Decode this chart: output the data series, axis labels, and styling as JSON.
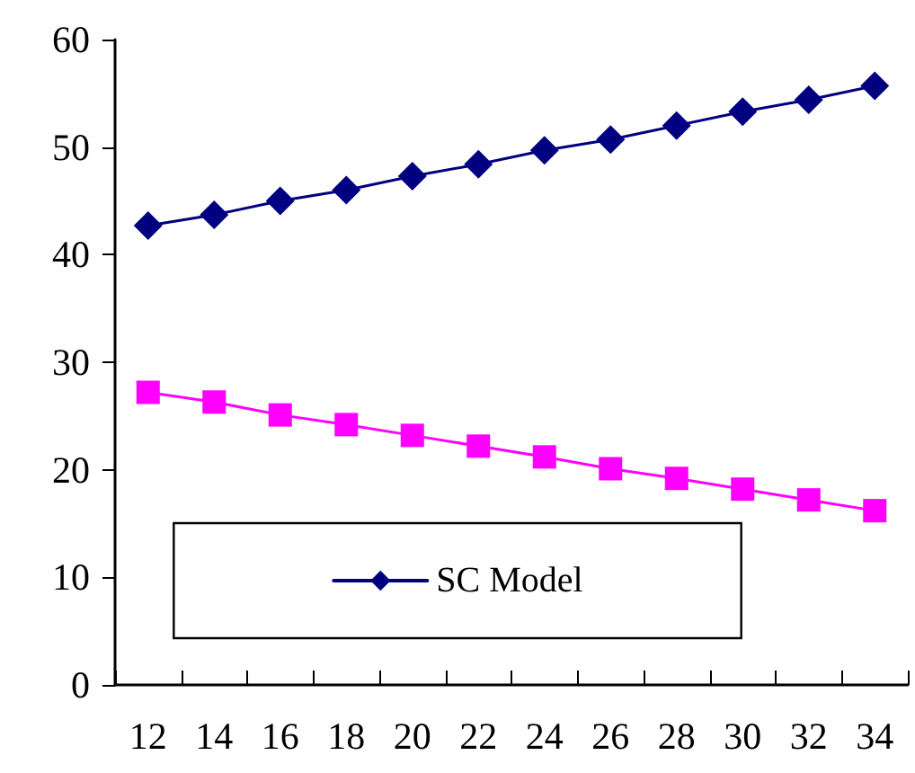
{
  "chart_data": {
    "type": "line",
    "categories": [
      "12",
      "14",
      "16",
      "18",
      "20",
      "22",
      "24",
      "26",
      "28",
      "30",
      "32",
      "34"
    ],
    "series": [
      {
        "name": "SC Model",
        "color": "#000080",
        "marker": "diamond",
        "values": [
          42.7,
          43.7,
          45.0,
          46.0,
          47.3,
          48.4,
          49.7,
          50.7,
          52.0,
          53.3,
          54.4,
          55.7
        ]
      },
      {
        "color": "#ff00ff",
        "marker": "square",
        "values": [
          27.2,
          26.3,
          25.1,
          24.2,
          23.2,
          22.2,
          21.2,
          20.1,
          19.2,
          18.2,
          17.2,
          16.2
        ]
      }
    ],
    "ylim": [
      0,
      60
    ],
    "yticks": [
      0,
      10,
      20,
      30,
      40,
      50,
      60
    ],
    "grid": false,
    "legend": "bottom",
    "line_style": "solid"
  }
}
